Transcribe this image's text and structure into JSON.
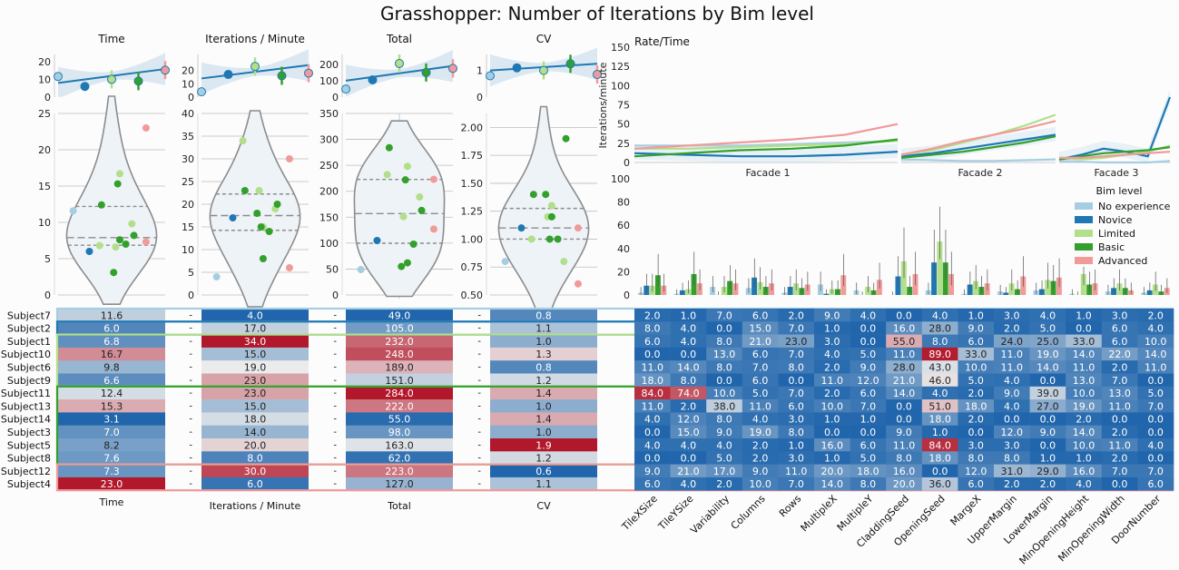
{
  "title": "Grasshopper: Number of Iterations by Bim level",
  "colors": {
    "No experience": "#a6cee3",
    "Novice": "#1f78b4",
    "Limited": "#b2df8a",
    "Basic": "#33a02c",
    "Advanced": "#f19a9a"
  },
  "chart_data": [
    {
      "type": "scatter",
      "panel": "top-regression",
      "titles": [
        "Time",
        "Iterations / Minute",
        "Total",
        "CV"
      ],
      "levels_x": [
        0,
        1,
        2,
        3,
        4
      ],
      "y_ticks": [
        [
          0,
          10,
          20
        ],
        [
          0,
          10,
          20
        ],
        [
          0,
          100,
          200
        ],
        [
          0,
          1
        ]
      ],
      "ylim": [
        [
          0,
          24
        ],
        [
          0,
          32
        ],
        [
          0,
          260
        ],
        [
          0,
          1.6
        ]
      ],
      "means": [
        [
          11.6,
          6.0,
          10.0,
          9.0,
          15.2
        ],
        [
          4.0,
          17.0,
          23.0,
          16.0,
          18.0
        ],
        [
          49.0,
          105.0,
          205.0,
          150.0,
          175.0
        ],
        [
          0.8,
          1.1,
          1.0,
          1.25,
          0.85
        ]
      ],
      "fit": [
        [
          8.0,
          15.8
        ],
        [
          14.0,
          24.0
        ],
        [
          100.0,
          190.0
        ],
        [
          1.0,
          1.25
        ]
      ]
    },
    {
      "type": "scatter",
      "panel": "violin",
      "y_ticks": [
        [
          0,
          5,
          10,
          15,
          20,
          25
        ],
        [
          0,
          5,
          10,
          15,
          20,
          25,
          30,
          35,
          40
        ],
        [
          0,
          50,
          100,
          150,
          200,
          250,
          300,
          350
        ],
        [
          0.5,
          0.75,
          1.0,
          1.25,
          1.5,
          1.75,
          2.0
        ]
      ],
      "ylim": [
        [
          0,
          25
        ],
        [
          0,
          40
        ],
        [
          0,
          350
        ],
        [
          0.5,
          2.125
        ]
      ]
    },
    {
      "type": "line",
      "panel": "rate-time",
      "title": "Rate/Time",
      "ylabel": "Iterations/minute",
      "y_ticks": [
        0,
        25,
        50,
        75,
        100,
        125,
        150
      ],
      "ylim": [
        0,
        150
      ],
      "facades": [
        "Facade 1",
        "Facade 2",
        "Facade 3"
      ]
    },
    {
      "type": "bar",
      "panel": "parameters",
      "y_ticks": [
        0,
        20,
        40,
        60,
        80,
        100
      ],
      "ylim": [
        0,
        100
      ],
      "legend_title": "Bim level",
      "legend_position": "top-right",
      "legend": [
        "No experience",
        "Novice",
        "Limited",
        "Basic",
        "Advanced"
      ],
      "categories": [
        "TileXSize",
        "TileYSize",
        "Variability",
        "Columns",
        "Rows",
        "MultipleX",
        "MultipleY",
        "CladdingSeed",
        "OpeningSeed",
        "MargeX",
        "UpperMargin",
        "LowerMargin",
        "MinOpeningHeight",
        "MinOpeningWidth",
        "DoorNumber"
      ],
      "series": [
        {
          "name": "No experience",
          "values": [
            2,
            1,
            7,
            6,
            2,
            9,
            4,
            0,
            4,
            1,
            3,
            4,
            1,
            3,
            2
          ]
        },
        {
          "name": "Novice",
          "values": [
            8,
            4,
            0,
            15,
            7,
            1,
            0,
            16,
            28,
            9,
            2,
            5,
            0,
            6,
            4
          ]
        },
        {
          "name": "Limited",
          "values": [
            8,
            5,
            7,
            11,
            10,
            5,
            7,
            29,
            46,
            12,
            10,
            13,
            18,
            10,
            9
          ]
        },
        {
          "name": "Basic",
          "values": [
            17,
            18,
            12,
            7,
            6,
            5,
            4,
            7,
            28,
            7,
            5,
            12,
            9,
            6,
            3
          ]
        },
        {
          "name": "Advanced",
          "values": [
            8,
            10,
            10,
            10,
            9,
            17,
            13,
            18,
            18,
            10,
            16,
            15,
            10,
            4,
            6
          ]
        }
      ]
    },
    {
      "type": "heatmap",
      "panel": "summary-table",
      "rows": [
        "Subject7",
        "Subject2",
        "Subject1",
        "Subject10",
        "Subject6",
        "Subject9",
        "Subject11",
        "Subject13",
        "Subject14",
        "Subject3",
        "Subject5",
        "Subject8",
        "Subject12",
        "Subject4"
      ],
      "row_levels": [
        0,
        1,
        2,
        2,
        2,
        2,
        3,
        3,
        3,
        3,
        3,
        3,
        4,
        4
      ],
      "columns": [
        "Time",
        "Iterations / Minute",
        "Total",
        "CV"
      ],
      "values": [
        [
          11.6,
          4.0,
          49.0,
          0.8
        ],
        [
          6.0,
          17.0,
          105.0,
          1.1
        ],
        [
          6.8,
          34.0,
          232.0,
          1.0
        ],
        [
          16.7,
          15.0,
          248.0,
          1.3
        ],
        [
          9.8,
          19.0,
          189.0,
          0.8
        ],
        [
          6.6,
          23.0,
          151.0,
          1.2
        ],
        [
          12.4,
          23.0,
          284.0,
          1.4
        ],
        [
          15.3,
          15.0,
          222.0,
          1.0
        ],
        [
          3.1,
          18.0,
          55.0,
          1.4
        ],
        [
          7.0,
          14.0,
          98.0,
          1.0
        ],
        [
          8.2,
          20.0,
          163.0,
          1.9
        ],
        [
          7.6,
          8.0,
          62.0,
          1.2
        ],
        [
          7.3,
          30.0,
          223.0,
          0.6
        ],
        [
          23.0,
          6.0,
          127.0,
          1.1
        ]
      ]
    },
    {
      "type": "heatmap",
      "panel": "parameter-table",
      "columns": [
        "TileXSize",
        "TileYSize",
        "Variability",
        "Columns",
        "Rows",
        "MultipleX",
        "MultipleY",
        "CladdingSeed",
        "OpeningSeed",
        "MargeX",
        "UpperMargin",
        "LowerMargin",
        "MinOpeningHeight",
        "MinOpeningWidth",
        "DoorNumber"
      ],
      "values": [
        [
          2.0,
          1.0,
          7.0,
          6.0,
          2.0,
          9.0,
          4.0,
          0.0,
          4.0,
          1.0,
          3.0,
          4.0,
          1.0,
          3.0,
          2.0
        ],
        [
          8.0,
          4.0,
          0.0,
          15.0,
          7.0,
          1.0,
          0.0,
          16.0,
          28.0,
          9.0,
          2.0,
          5.0,
          0.0,
          6.0,
          4.0
        ],
        [
          6.0,
          4.0,
          8.0,
          21.0,
          23.0,
          3.0,
          0.0,
          55.0,
          8.0,
          6.0,
          24.0,
          25.0,
          33.0,
          6.0,
          10.0
        ],
        [
          0.0,
          0.0,
          13.0,
          6.0,
          7.0,
          4.0,
          5.0,
          11.0,
          89.0,
          33.0,
          11.0,
          19.0,
          14.0,
          22.0,
          14.0
        ],
        [
          11.0,
          14.0,
          8.0,
          7.0,
          8.0,
          2.0,
          9.0,
          28.0,
          43.0,
          10.0,
          11.0,
          14.0,
          11.0,
          2.0,
          11.0
        ],
        [
          18.0,
          8.0,
          0.0,
          6.0,
          0.0,
          11.0,
          12.0,
          21.0,
          46.0,
          5.0,
          4.0,
          0.0,
          13.0,
          7.0,
          0.0
        ],
        [
          84.0,
          74.0,
          10.0,
          5.0,
          7.0,
          2.0,
          6.0,
          14.0,
          4.0,
          2.0,
          9.0,
          39.0,
          10.0,
          13.0,
          5.0
        ],
        [
          11.0,
          2.0,
          38.0,
          11.0,
          6.0,
          10.0,
          7.0,
          0.0,
          51.0,
          18.0,
          4.0,
          27.0,
          19.0,
          11.0,
          7.0
        ],
        [
          4.0,
          12.0,
          8.0,
          4.0,
          3.0,
          1.0,
          1.0,
          0.0,
          18.0,
          2.0,
          0.0,
          0.0,
          2.0,
          0.0,
          0.0
        ],
        [
          0.0,
          15.0,
          9.0,
          19.0,
          8.0,
          0.0,
          0.0,
          9.0,
          1.0,
          0.0,
          12.0,
          9.0,
          14.0,
          2.0,
          0.0
        ],
        [
          4.0,
          4.0,
          4.0,
          2.0,
          1.0,
          16.0,
          6.0,
          11.0,
          84.0,
          3.0,
          3.0,
          0.0,
          10.0,
          11.0,
          4.0
        ],
        [
          0.0,
          0.0,
          5.0,
          2.0,
          3.0,
          1.0,
          5.0,
          8.0,
          18.0,
          8.0,
          8.0,
          1.0,
          1.0,
          2.0,
          0.0
        ],
        [
          9.0,
          21.0,
          17.0,
          9.0,
          11.0,
          20.0,
          18.0,
          16.0,
          0.0,
          12.0,
          31.0,
          29.0,
          16.0,
          7.0,
          7.0
        ],
        [
          6.0,
          4.0,
          2.0,
          10.0,
          7.0,
          14.0,
          8.0,
          20.0,
          36.0,
          6.0,
          2.0,
          2.0,
          4.0,
          0.0,
          6.0
        ]
      ]
    }
  ]
}
